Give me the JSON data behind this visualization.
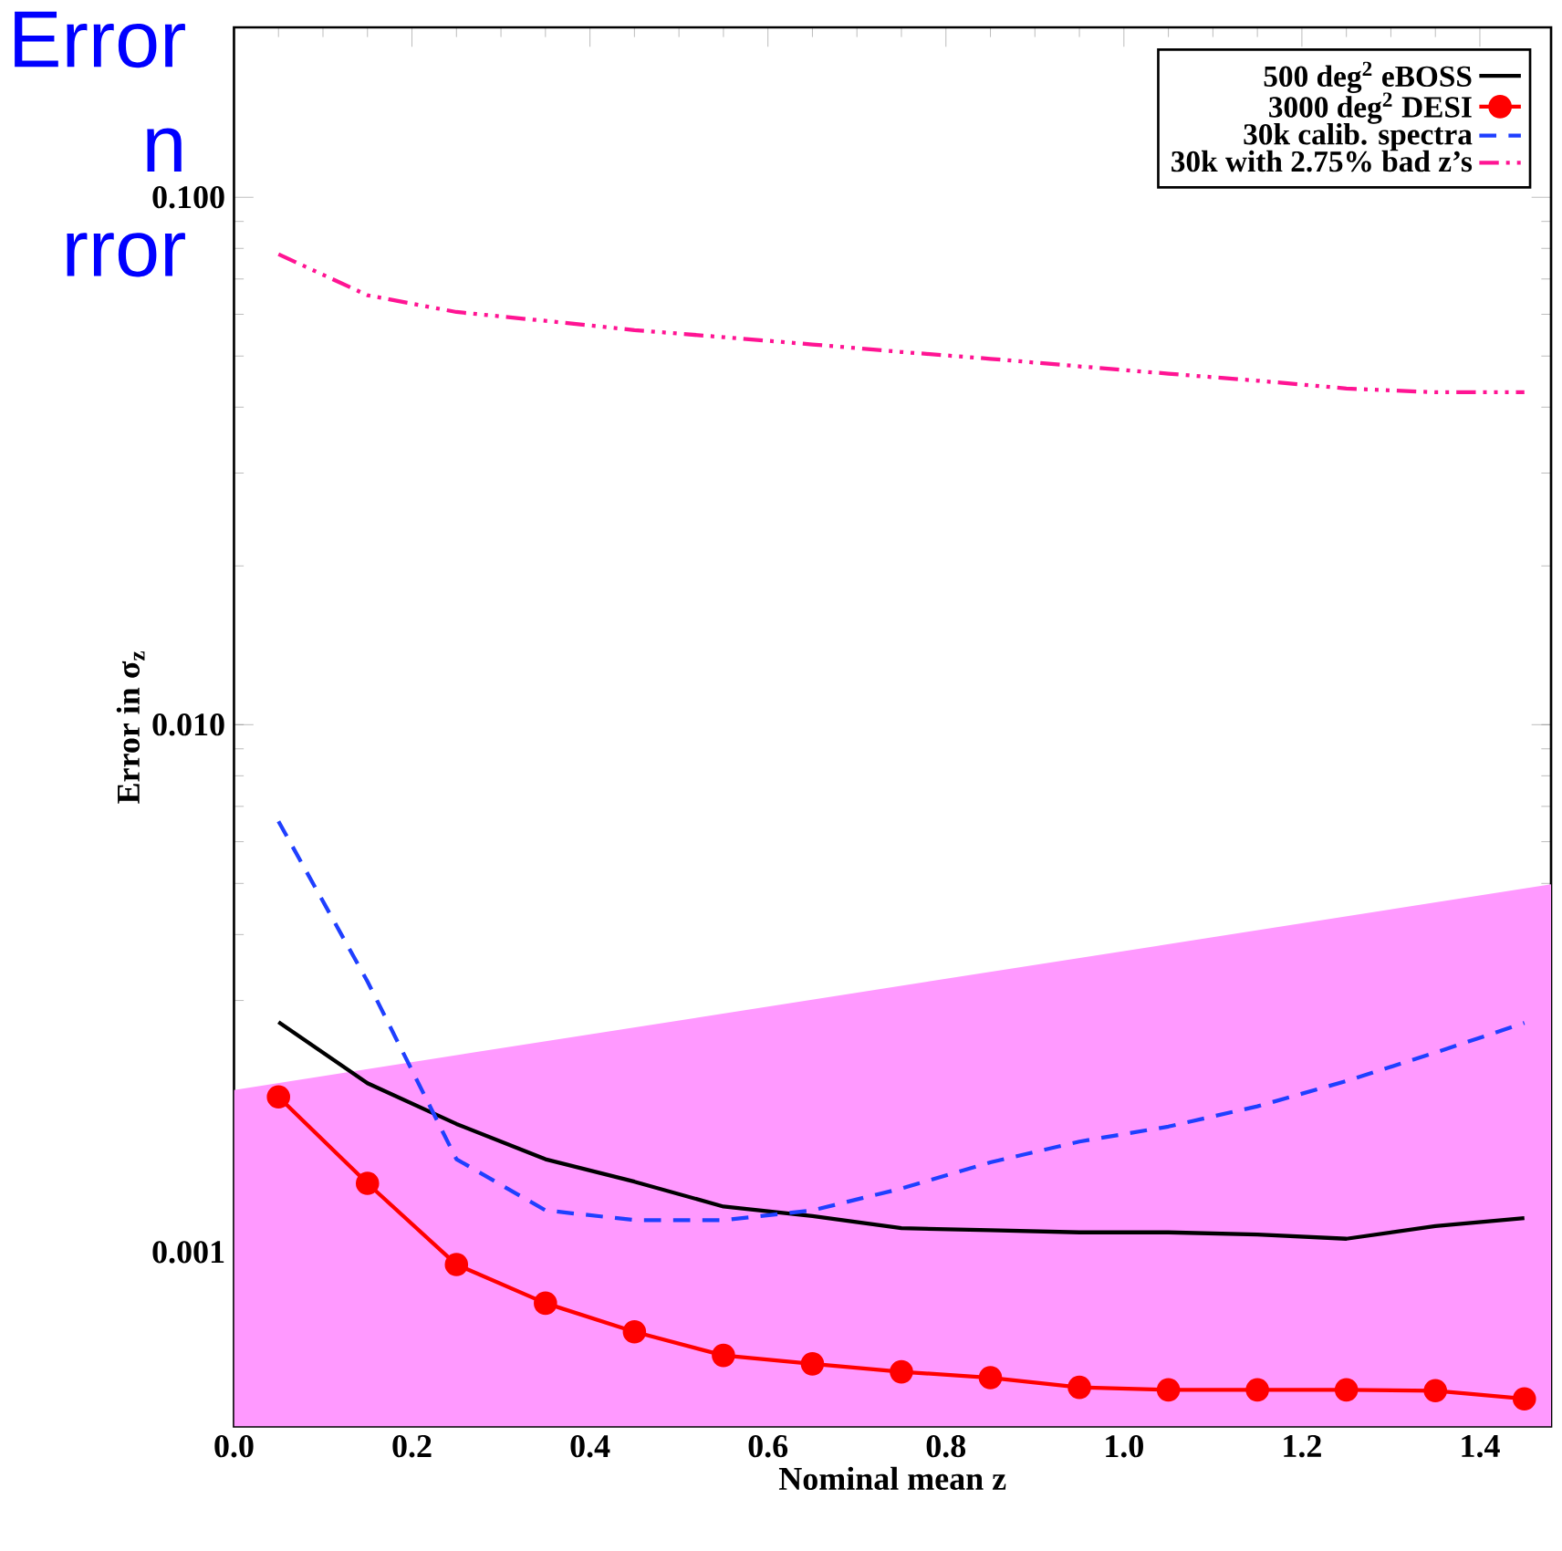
{
  "chart_data": {
    "type": "line",
    "xlabel": "Nominal mean z",
    "ylabel": "Error in σ$_{z}$",
    "log": "y",
    "xlim": [
      0,
      1.48
    ],
    "ylim": [
      0.000467,
      0.21
    ],
    "xticks": [
      {
        "value": 0,
        "label": "0.0"
      },
      0.2,
      0.4,
      0.6,
      0.8,
      {
        "value": 1,
        "label": "1.0"
      },
      1.2,
      1.4
    ],
    "yticks": [
      {
        "value": 0.001,
        "label": "0.001"
      },
      {
        "value": 0.01,
        "label": "0.010"
      },
      {
        "value": 0.1,
        "label": "0.100"
      }
    ],
    "grid": false,
    "legend": "top right",
    "x": [
      0.05,
      0.15,
      0.25,
      0.35,
      0.45,
      0.55,
      0.65,
      0.75,
      0.85,
      0.95,
      1.05,
      1.15,
      1.25,
      1.35,
      1.45
    ],
    "series": [
      {
        "type": "area",
        "color": "#ff99ff",
        "x": [
          0,
          1.48
        ],
        "values": [
          0.00203,
          0.00498
        ]
      },
      {
        "name": "500 deg$^{2}$ eBOSS",
        "color": "#000000",
        "line_style": "solid",
        "marker": "none",
        "values": [
          0.00273,
          0.00209,
          0.00175,
          0.0015,
          0.00136,
          0.00122,
          0.00117,
          0.00111,
          0.0011,
          0.00109,
          0.00109,
          0.00108,
          0.00106,
          0.00112,
          0.00116
        ]
      },
      {
        "name": "3000 deg$^{2}$ DESI",
        "color": "#ff0000",
        "line_style": "solid",
        "marker": "circle",
        "values": [
          0.00197,
          0.00135,
          0.000947,
          0.0008,
          0.000706,
          0.000637,
          0.000614,
          0.000593,
          0.000578,
          0.000554,
          0.000548,
          0.000548,
          0.000548,
          0.000546,
          0.000527
        ]
      },
      {
        "name": "30k calib. spectra",
        "color": "#1f3fff",
        "line_style": "dashed",
        "marker": "none",
        "values": [
          0.00656,
          0.00326,
          0.0015,
          0.0012,
          0.00115,
          0.00115,
          0.0012,
          0.00132,
          0.00148,
          0.00162,
          0.00173,
          0.00189,
          0.00211,
          0.00239,
          0.00272
        ]
      },
      {
        "name": "30k with 2.75% bad z’s",
        "color": "#ff1493",
        "line_style": "dashdotdotted",
        "marker": "none",
        "values": [
          0.078,
          0.0652,
          0.0606,
          0.0583,
          0.056,
          0.0543,
          0.0526,
          0.0509,
          0.0494,
          0.0478,
          0.0463,
          0.0449,
          0.0434,
          0.0427,
          0.0427
        ]
      }
    ],
    "annotations": [
      "Error",
      "n",
      "rror"
    ]
  }
}
